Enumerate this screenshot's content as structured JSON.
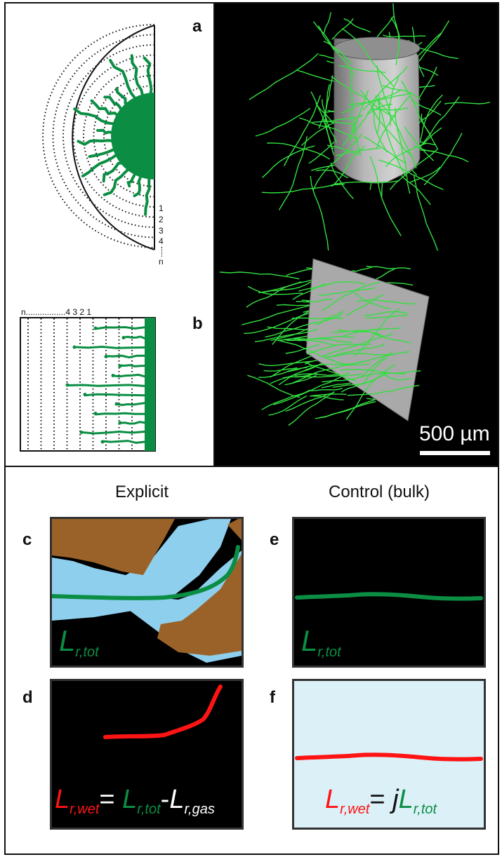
{
  "panel_labels": {
    "a": "a",
    "b": "b",
    "c": "c",
    "d": "d",
    "e": "e",
    "f": "f"
  },
  "headings": {
    "explicit": "Explicit",
    "control": "Control (bulk)"
  },
  "ring_numbers_a": [
    "1",
    "2",
    "3",
    "4",
    "n"
  ],
  "ring_numbers_b": "n.................4  3  2  1",
  "scale_bar_label": "500 µm",
  "equations": {
    "c": {
      "L": "L",
      "sub": "r,tot"
    },
    "e": {
      "L": "L",
      "sub": "r,tot"
    },
    "d": {
      "L1": "L",
      "sub1": "r,wet",
      "eq": "=",
      "L2": "L",
      "sub2": "r,tot",
      "minus": "-",
      "L3": "L",
      "sub3": "r,gas"
    },
    "f": {
      "L1": "L",
      "sub1": "r,wet",
      "eq": "=",
      "j": "j",
      "L2": "L",
      "sub2": "r,tot"
    }
  },
  "colors": {
    "root": "#0b8e44",
    "root_bright": "#33e040",
    "water": "#8ecfee",
    "soil": "#9a6228",
    "red": "#ff1414",
    "bulk_water": "#dcf0f8",
    "cylinder": "#a7a7a7"
  }
}
